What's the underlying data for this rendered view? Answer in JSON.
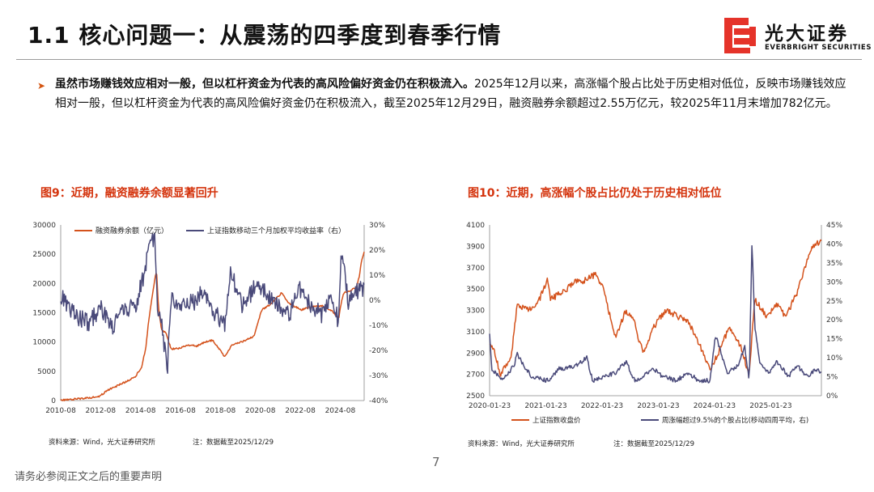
{
  "header": {
    "title": "1.1 核心问题一：从震荡的四季度到春季行情",
    "logo_cn": "光大证券",
    "logo_en": "EVERBRIGHT SECURITIES"
  },
  "body": {
    "bullet_bold": "虽然市场赚钱效应相对一般，但以杠杆资金为代表的高风险偏好资金仍在积极流入。",
    "bullet_rest": "2025年12月以来，高涨幅个股占比处于历史相对低位，反映市场赚钱效应相对一般，但以杠杆资金为代表的高风险偏好资金仍在积极流入，截至2025年12月29日，融资融券余额超过2.55万亿元，较2025年11月末增加782亿元。"
  },
  "figures": {
    "fig9": {
      "title": "图9：近期，融资融券余额显著回升",
      "source": "资料来源：Wind，光大证券研究所",
      "note": "注：数据截至2025/12/29"
    },
    "fig10": {
      "title": "图10：近期，高涨幅个股占比仍处于历史相对低位",
      "source": "资料来源：Wind，光大证券研究所",
      "note": "注：数据截至2025/12/29"
    }
  },
  "colors": {
    "orange": "#d4521c",
    "navy": "#4a4a7a",
    "red_title": "#d4330c"
  },
  "chart_data": [
    {
      "type": "line",
      "title": "图9：近期，融资融券余额显著回升",
      "x_ticks": [
        "2010-08",
        "2012-08",
        "2014-08",
        "2016-08",
        "2018-08",
        "2020-08",
        "2022-08",
        "2024-08"
      ],
      "x_range": [
        2010.583,
        2025.995
      ],
      "y_left": {
        "ticks": [
          "0",
          "5000",
          "10000",
          "15000",
          "20000",
          "25000",
          "30000"
        ],
        "range": [
          0,
          30000
        ]
      },
      "y_right": {
        "ticks": [
          "-40%",
          "-30%",
          "-20%",
          "-10%",
          "0%",
          "10%",
          "20%",
          "30%"
        ],
        "range": [
          -40,
          30
        ]
      },
      "series": [
        {
          "name": "融资融券余额（亿元）",
          "axis": "left",
          "points": [
            [
              2010.6,
              100
            ],
            [
              2011.5,
              300
            ],
            [
              2012.5,
              650
            ],
            [
              2013.0,
              1800
            ],
            [
              2013.5,
              2600
            ],
            [
              2014.0,
              3400
            ],
            [
              2014.4,
              4200
            ],
            [
              2014.7,
              5800
            ],
            [
              2014.9,
              9000
            ],
            [
              2015.05,
              13500
            ],
            [
              2015.2,
              17000
            ],
            [
              2015.35,
              20500
            ],
            [
              2015.45,
              22300
            ],
            [
              2015.55,
              16000
            ],
            [
              2015.7,
              12000
            ],
            [
              2015.9,
              11700
            ],
            [
              2016.2,
              8800
            ],
            [
              2016.6,
              8900
            ],
            [
              2017.0,
              9500
            ],
            [
              2017.5,
              9300
            ],
            [
              2017.9,
              10000
            ],
            [
              2018.3,
              10300
            ],
            [
              2018.9,
              7600
            ],
            [
              2019.3,
              9500
            ],
            [
              2019.9,
              10200
            ],
            [
              2020.4,
              11000
            ],
            [
              2020.8,
              15500
            ],
            [
              2021.3,
              16600
            ],
            [
              2021.8,
              18400
            ],
            [
              2022.2,
              16500
            ],
            [
              2022.8,
              15500
            ],
            [
              2023.3,
              16000
            ],
            [
              2023.9,
              16200
            ],
            [
              2024.4,
              15200
            ],
            [
              2024.7,
              14000
            ],
            [
              2024.85,
              17000
            ],
            [
              2024.95,
              18300
            ],
            [
              2025.3,
              18800
            ],
            [
              2025.6,
              19300
            ],
            [
              2025.75,
              21300
            ],
            [
              2025.85,
              23500
            ],
            [
              2025.995,
              25500
            ]
          ]
        },
        {
          "name": "上证指数移动三个月加权平均收益率（右）",
          "axis": "right",
          "points": [
            [
              2010.6,
              2
            ],
            [
              2011.3,
              -6
            ],
            [
              2012.0,
              -9
            ],
            [
              2012.6,
              -3
            ],
            [
              2013.2,
              -11
            ],
            [
              2013.8,
              -4
            ],
            [
              2014.4,
              -2
            ],
            [
              2014.8,
              10
            ],
            [
              2015.05,
              21
            ],
            [
              2015.35,
              25
            ],
            [
              2015.5,
              -3
            ],
            [
              2015.7,
              -9
            ],
            [
              2016.0,
              -28
            ],
            [
              2016.2,
              2
            ],
            [
              2016.6,
              -2
            ],
            [
              2017.3,
              -1
            ],
            [
              2017.8,
              3
            ],
            [
              2018.3,
              -4
            ],
            [
              2018.9,
              -10
            ],
            [
              2019.2,
              12
            ],
            [
              2019.8,
              -3
            ],
            [
              2020.5,
              6
            ],
            [
              2020.9,
              4
            ],
            [
              2021.5,
              -1
            ],
            [
              2022.2,
              -6
            ],
            [
              2022.7,
              5
            ],
            [
              2023.3,
              -2
            ],
            [
              2023.9,
              -6
            ],
            [
              2024.3,
              3
            ],
            [
              2024.7,
              -9
            ],
            [
              2024.85,
              20
            ],
            [
              2025.2,
              -1
            ],
            [
              2025.6,
              3
            ],
            [
              2025.995,
              5
            ]
          ]
        }
      ]
    },
    {
      "type": "line",
      "title": "图10：近期，高涨幅个股占比仍处于历史相对低位",
      "x_ticks": [
        "2020-01-23",
        "2021-01-23",
        "2022-01-23",
        "2023-01-23",
        "2024-01-23",
        "2025-01-23"
      ],
      "x_range": [
        2020.06,
        2025.99
      ],
      "y_left": {
        "ticks": [
          "2500",
          "2700",
          "2900",
          "3100",
          "3300",
          "3500",
          "3700",
          "3900",
          "4100"
        ],
        "range": [
          2500,
          4100
        ]
      },
      "y_right": {
        "ticks": [
          "0%",
          "5%",
          "10%",
          "15%",
          "20%",
          "25%",
          "30%",
          "35%",
          "40%",
          "45%"
        ],
        "range": [
          0,
          45
        ]
      },
      "series": [
        {
          "name": "上证指数收盘价",
          "axis": "left",
          "points": [
            [
              2020.06,
              3000
            ],
            [
              2020.15,
              2900
            ],
            [
              2020.25,
              2700
            ],
            [
              2020.45,
              2860
            ],
            [
              2020.55,
              3350
            ],
            [
              2020.75,
              3300
            ],
            [
              2020.95,
              3400
            ],
            [
              2021.1,
              3600
            ],
            [
              2021.15,
              3400
            ],
            [
              2021.4,
              3480
            ],
            [
              2021.55,
              3560
            ],
            [
              2021.75,
              3580
            ],
            [
              2021.95,
              3630
            ],
            [
              2022.1,
              3500
            ],
            [
              2022.3,
              3050
            ],
            [
              2022.5,
              3300
            ],
            [
              2022.65,
              3180
            ],
            [
              2022.8,
              2900
            ],
            [
              2023.0,
              3150
            ],
            [
              2023.2,
              3300
            ],
            [
              2023.4,
              3250
            ],
            [
              2023.6,
              3200
            ],
            [
              2023.8,
              3000
            ],
            [
              2024.0,
              2750
            ],
            [
              2024.15,
              2900
            ],
            [
              2024.35,
              3150
            ],
            [
              2024.55,
              2950
            ],
            [
              2024.7,
              2700
            ],
            [
              2024.8,
              3400
            ],
            [
              2025.0,
              3250
            ],
            [
              2025.2,
              3350
            ],
            [
              2025.35,
              3250
            ],
            [
              2025.55,
              3450
            ],
            [
              2025.75,
              3800
            ],
            [
              2025.85,
              3900
            ],
            [
              2025.99,
              3960
            ]
          ]
        },
        {
          "name": "周涨幅超过9.5%的个股占比(移动四周平均，右)",
          "axis": "right",
          "points": [
            [
              2020.06,
              16
            ],
            [
              2020.1,
              7
            ],
            [
              2020.3,
              4
            ],
            [
              2020.5,
              8
            ],
            [
              2020.55,
              11
            ],
            [
              2020.8,
              5
            ],
            [
              2021.1,
              4
            ],
            [
              2021.3,
              7
            ],
            [
              2021.6,
              8
            ],
            [
              2021.8,
              10
            ],
            [
              2021.9,
              4
            ],
            [
              2022.1,
              5
            ],
            [
              2022.3,
              6
            ],
            [
              2022.5,
              9
            ],
            [
              2022.65,
              4
            ],
            [
              2022.8,
              5
            ],
            [
              2023.0,
              7
            ],
            [
              2023.15,
              5
            ],
            [
              2023.4,
              4
            ],
            [
              2023.6,
              6
            ],
            [
              2023.8,
              4
            ],
            [
              2024.0,
              4
            ],
            [
              2024.1,
              16
            ],
            [
              2024.3,
              6
            ],
            [
              2024.5,
              8
            ],
            [
              2024.62,
              13
            ],
            [
              2024.7,
              4
            ],
            [
              2024.75,
              41
            ],
            [
              2024.8,
              18
            ],
            [
              2024.9,
              8
            ],
            [
              2025.05,
              6
            ],
            [
              2025.2,
              9
            ],
            [
              2025.4,
              5
            ],
            [
              2025.55,
              8
            ],
            [
              2025.75,
              5
            ],
            [
              2025.9,
              7
            ],
            [
              2025.99,
              6
            ]
          ]
        }
      ]
    }
  ]
}
